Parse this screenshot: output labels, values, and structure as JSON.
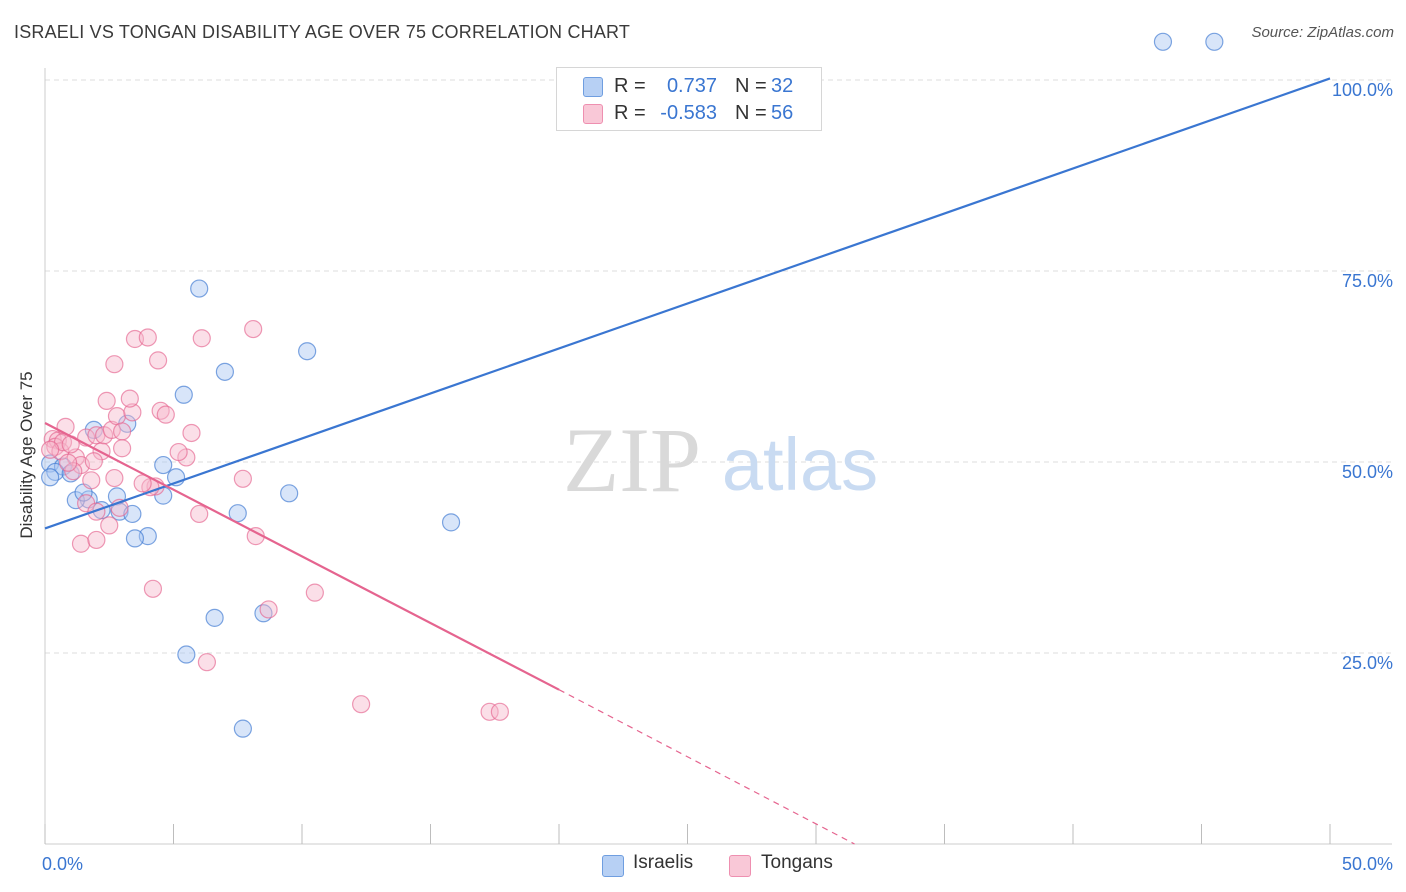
{
  "title": "ISRAELI VS TONGAN DISABILITY AGE OVER 75 CORRELATION CHART",
  "source": "Source: ZipAtlas.com",
  "watermark": {
    "zip": "ZIP",
    "atlas": "atlas"
  },
  "colors": {
    "israelis": "#3a76d1",
    "israelis_fill": "#a9c6f2",
    "tongans": "#e5648f",
    "tongans_fill": "#f6b9cc",
    "accent_text": "#3a76d1",
    "grid": "#dddddd"
  },
  "stats": [
    {
      "r_label": "R =",
      "r_value": "0.737",
      "n_label": "N =",
      "n_value": "32"
    },
    {
      "r_label": "R =",
      "r_value": "-0.583",
      "n_label": "N =",
      "n_value": "56"
    }
  ],
  "legend": [
    "Israelis",
    "Tongans"
  ],
  "chart_data": {
    "type": "scatter",
    "title": "ISRAELI VS TONGAN DISABILITY AGE OVER 75 CORRELATION CHART",
    "xlabel": "",
    "ylabel": "Disability Age Over 75",
    "xlim": [
      0,
      50
    ],
    "ylim": [
      0,
      100
    ],
    "x_tick_labels": [
      "0.0%",
      "50.0%"
    ],
    "y_tick_labels": [
      "25.0%",
      "50.0%",
      "75.0%",
      "100.0%"
    ],
    "y_tick_values": [
      25,
      50,
      75,
      100
    ],
    "grid": true,
    "series": [
      {
        "name": "Israelis",
        "r": 0.737,
        "n": 32,
        "trend": {
          "x": [
            0,
            50
          ],
          "y": [
            41.3,
            100.2
          ]
        },
        "points": [
          [
            0.2,
            49.8
          ],
          [
            0.7,
            49.4
          ],
          [
            0.4,
            48.7
          ],
          [
            1.0,
            48.5
          ],
          [
            0.2,
            48.0
          ],
          [
            1.7,
            45.1
          ],
          [
            2.8,
            45.5
          ],
          [
            1.2,
            45.0
          ],
          [
            2.2,
            43.7
          ],
          [
            2.9,
            43.5
          ],
          [
            3.4,
            43.2
          ],
          [
            1.9,
            54.2
          ],
          [
            3.2,
            55.0
          ],
          [
            4.6,
            45.6
          ],
          [
            5.1,
            48.0
          ],
          [
            4.6,
            49.6
          ],
          [
            5.4,
            58.8
          ],
          [
            6.0,
            72.7
          ],
          [
            7.0,
            61.8
          ],
          [
            7.5,
            43.3
          ],
          [
            8.5,
            30.2
          ],
          [
            9.5,
            45.9
          ],
          [
            10.2,
            64.5
          ],
          [
            4.0,
            40.3
          ],
          [
            3.5,
            40.0
          ],
          [
            6.6,
            29.6
          ],
          [
            5.5,
            24.8
          ],
          [
            7.7,
            15.1
          ],
          [
            15.8,
            42.1
          ],
          [
            43.5,
            105.0
          ],
          [
            45.5,
            105.0
          ],
          [
            1.5,
            46.0
          ]
        ]
      },
      {
        "name": "Tongans",
        "r": -0.583,
        "n": 56,
        "trend": {
          "x": [
            0,
            20
          ],
          "y": [
            55.1,
            20.2
          ]
        },
        "dashed_extension": {
          "x": [
            20,
            31.5
          ],
          "y": [
            20.2,
            0
          ]
        },
        "points": [
          [
            0.3,
            53.0
          ],
          [
            0.5,
            52.8
          ],
          [
            0.8,
            54.6
          ],
          [
            0.4,
            52.0
          ],
          [
            0.6,
            51.4
          ],
          [
            1.2,
            50.6
          ],
          [
            1.4,
            49.6
          ],
          [
            1.1,
            48.8
          ],
          [
            0.9,
            49.9
          ],
          [
            1.6,
            53.2
          ],
          [
            2.0,
            53.5
          ],
          [
            2.2,
            51.4
          ],
          [
            2.3,
            53.5
          ],
          [
            2.6,
            54.2
          ],
          [
            2.8,
            56.0
          ],
          [
            3.0,
            54.0
          ],
          [
            3.4,
            56.5
          ],
          [
            2.4,
            58.0
          ],
          [
            3.3,
            58.3
          ],
          [
            2.7,
            62.8
          ],
          [
            3.5,
            66.1
          ],
          [
            4.0,
            66.3
          ],
          [
            4.4,
            63.3
          ],
          [
            4.5,
            56.7
          ],
          [
            4.7,
            56.2
          ],
          [
            5.7,
            53.8
          ],
          [
            5.5,
            50.6
          ],
          [
            6.1,
            66.2
          ],
          [
            8.1,
            67.4
          ],
          [
            7.7,
            47.8
          ],
          [
            8.2,
            40.3
          ],
          [
            6.0,
            43.2
          ],
          [
            4.3,
            46.8
          ],
          [
            4.1,
            46.7
          ],
          [
            2.7,
            47.9
          ],
          [
            1.6,
            44.6
          ],
          [
            2.0,
            43.5
          ],
          [
            1.4,
            39.3
          ],
          [
            2.0,
            39.8
          ],
          [
            3.0,
            51.8
          ],
          [
            4.2,
            33.4
          ],
          [
            8.7,
            30.7
          ],
          [
            10.5,
            32.9
          ],
          [
            6.3,
            23.8
          ],
          [
            12.3,
            18.3
          ],
          [
            17.3,
            17.3
          ],
          [
            17.7,
            17.3
          ],
          [
            0.7,
            52.6
          ],
          [
            1.8,
            47.6
          ],
          [
            2.5,
            41.7
          ],
          [
            3.8,
            47.2
          ],
          [
            0.2,
            51.6
          ],
          [
            1.0,
            52.3
          ],
          [
            1.9,
            50.1
          ],
          [
            5.2,
            51.3
          ],
          [
            2.9,
            44.0
          ]
        ]
      }
    ]
  }
}
